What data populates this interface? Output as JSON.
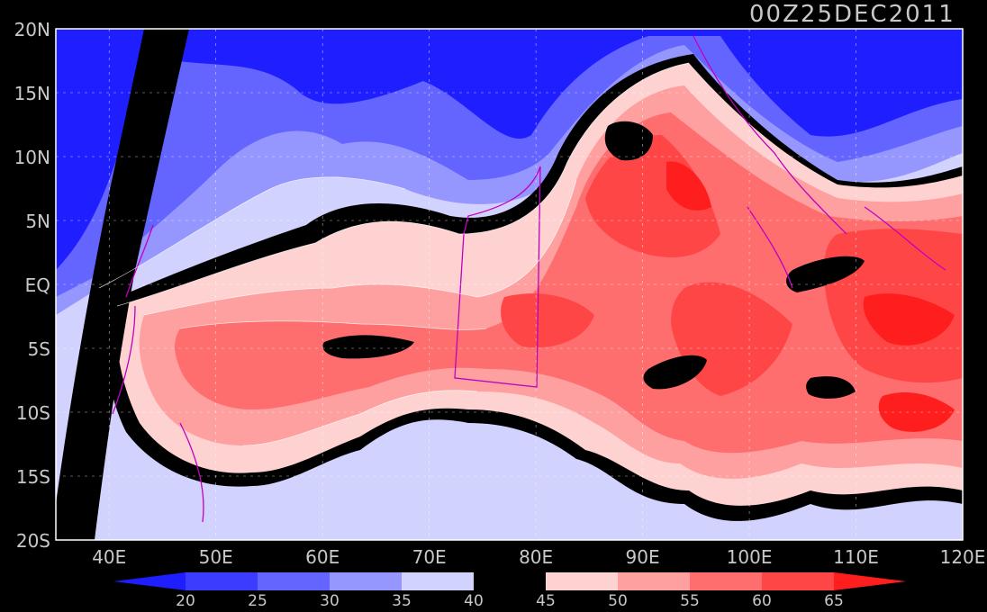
{
  "title": "00Z25DEC2011",
  "axes": {
    "lat_labels": [
      "20N",
      "15N",
      "10N",
      "5N",
      "EQ",
      "5S",
      "10S",
      "15S",
      "20S"
    ],
    "lat_values": [
      20,
      15,
      10,
      5,
      0,
      -5,
      -10,
      -15,
      -20
    ],
    "lon_labels": [
      "40E",
      "50E",
      "60E",
      "70E",
      "80E",
      "90E",
      "100E",
      "110E",
      "120E"
    ],
    "lon_values": [
      40,
      50,
      60,
      70,
      80,
      90,
      100,
      110,
      120
    ],
    "lon_range": [
      35,
      120
    ],
    "lat_range": [
      -20,
      20
    ],
    "grid": true
  },
  "colorbar": {
    "levels": [
      "20",
      "25",
      "30",
      "35",
      "40",
      "45",
      "50",
      "55",
      "60",
      "65"
    ],
    "colors": [
      "#1e1eff",
      "#3c3cff",
      "#6464ff",
      "#9696ff",
      "#d2d2ff",
      "#000000",
      "#ffd2d2",
      "#ffa0a0",
      "#ff6e6e",
      "#ff4646",
      "#ff1e1e"
    ]
  },
  "map_colors": {
    "bg_blue": "#1e1eff",
    "contour": "#ffffff",
    "coast": "#c000c0",
    "band": "#000000"
  }
}
